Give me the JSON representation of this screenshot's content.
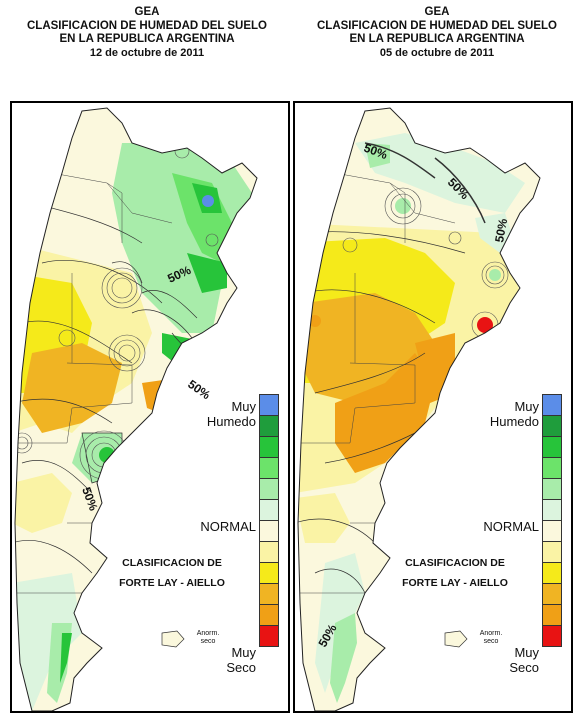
{
  "maps": [
    {
      "org": "GEA",
      "title_line1": "CLASIFICACION DE HUMEDAD DEL SUELO",
      "title_line2": "EN LA REPUBLICA ARGENTINA",
      "date": "12 de octubre de 2011",
      "contour_labels": [
        "50%",
        "50%",
        "50%"
      ]
    },
    {
      "org": "GEA",
      "title_line1": "CLASIFICACION DE HUMEDAD DEL SUELO",
      "title_line2": "EN LA REPUBLICA ARGENTINA",
      "date": "05 de octubre de 2011",
      "contour_labels": [
        "50%",
        "50%",
        "50%",
        "50%"
      ]
    }
  ],
  "legend": {
    "label_wet": "Muy",
    "label_wet2": "Humedo",
    "label_normal": "NORMAL",
    "label_dry": "Muy",
    "label_dry2": "Seco",
    "classification_line1": "CLASIFICACION DE",
    "classification_line2": "FORTE LAY - AIELLO",
    "anom_line1": "Anorm.",
    "anom_line2": "seco",
    "colors": [
      "#5b8de8",
      "#1f9d3c",
      "#27c43a",
      "#6ce36a",
      "#a8ecaa",
      "#dcf4de",
      "#fbf8dd",
      "#faf3a5",
      "#f5ea1a",
      "#f0b423",
      "#f0a016",
      "#e81313"
    ]
  }
}
